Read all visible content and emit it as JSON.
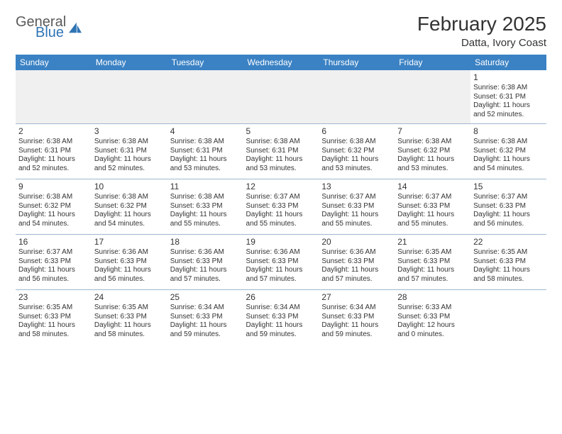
{
  "brand": {
    "line1": "General",
    "line2": "Blue",
    "color_general": "#5a5a5a",
    "color_blue": "#2f74b5",
    "sail_color": "#2f74b5"
  },
  "header": {
    "month_title": "February 2025",
    "location": "Datta, Ivory Coast"
  },
  "style": {
    "header_bg": "#3b82c4",
    "header_text": "#ffffff",
    "cell_border": "#9fb8cf",
    "empty_bg": "#f0f0f0",
    "body_text": "#333333",
    "font_day": 12,
    "font_cell": 10,
    "font_title": 28,
    "font_location": 15
  },
  "weekdays": [
    "Sunday",
    "Monday",
    "Tuesday",
    "Wednesday",
    "Thursday",
    "Friday",
    "Saturday"
  ],
  "weeks": [
    [
      null,
      null,
      null,
      null,
      null,
      null,
      {
        "day": "1",
        "sunrise": "6:38 AM",
        "sunset": "6:31 PM",
        "daylight": "11 hours and 52 minutes."
      }
    ],
    [
      {
        "day": "2",
        "sunrise": "6:38 AM",
        "sunset": "6:31 PM",
        "daylight": "11 hours and 52 minutes."
      },
      {
        "day": "3",
        "sunrise": "6:38 AM",
        "sunset": "6:31 PM",
        "daylight": "11 hours and 52 minutes."
      },
      {
        "day": "4",
        "sunrise": "6:38 AM",
        "sunset": "6:31 PM",
        "daylight": "11 hours and 53 minutes."
      },
      {
        "day": "5",
        "sunrise": "6:38 AM",
        "sunset": "6:31 PM",
        "daylight": "11 hours and 53 minutes."
      },
      {
        "day": "6",
        "sunrise": "6:38 AM",
        "sunset": "6:32 PM",
        "daylight": "11 hours and 53 minutes."
      },
      {
        "day": "7",
        "sunrise": "6:38 AM",
        "sunset": "6:32 PM",
        "daylight": "11 hours and 53 minutes."
      },
      {
        "day": "8",
        "sunrise": "6:38 AM",
        "sunset": "6:32 PM",
        "daylight": "11 hours and 54 minutes."
      }
    ],
    [
      {
        "day": "9",
        "sunrise": "6:38 AM",
        "sunset": "6:32 PM",
        "daylight": "11 hours and 54 minutes."
      },
      {
        "day": "10",
        "sunrise": "6:38 AM",
        "sunset": "6:32 PM",
        "daylight": "11 hours and 54 minutes."
      },
      {
        "day": "11",
        "sunrise": "6:38 AM",
        "sunset": "6:33 PM",
        "daylight": "11 hours and 55 minutes."
      },
      {
        "day": "12",
        "sunrise": "6:37 AM",
        "sunset": "6:33 PM",
        "daylight": "11 hours and 55 minutes."
      },
      {
        "day": "13",
        "sunrise": "6:37 AM",
        "sunset": "6:33 PM",
        "daylight": "11 hours and 55 minutes."
      },
      {
        "day": "14",
        "sunrise": "6:37 AM",
        "sunset": "6:33 PM",
        "daylight": "11 hours and 55 minutes."
      },
      {
        "day": "15",
        "sunrise": "6:37 AM",
        "sunset": "6:33 PM",
        "daylight": "11 hours and 56 minutes."
      }
    ],
    [
      {
        "day": "16",
        "sunrise": "6:37 AM",
        "sunset": "6:33 PM",
        "daylight": "11 hours and 56 minutes."
      },
      {
        "day": "17",
        "sunrise": "6:36 AM",
        "sunset": "6:33 PM",
        "daylight": "11 hours and 56 minutes."
      },
      {
        "day": "18",
        "sunrise": "6:36 AM",
        "sunset": "6:33 PM",
        "daylight": "11 hours and 57 minutes."
      },
      {
        "day": "19",
        "sunrise": "6:36 AM",
        "sunset": "6:33 PM",
        "daylight": "11 hours and 57 minutes."
      },
      {
        "day": "20",
        "sunrise": "6:36 AM",
        "sunset": "6:33 PM",
        "daylight": "11 hours and 57 minutes."
      },
      {
        "day": "21",
        "sunrise": "6:35 AM",
        "sunset": "6:33 PM",
        "daylight": "11 hours and 57 minutes."
      },
      {
        "day": "22",
        "sunrise": "6:35 AM",
        "sunset": "6:33 PM",
        "daylight": "11 hours and 58 minutes."
      }
    ],
    [
      {
        "day": "23",
        "sunrise": "6:35 AM",
        "sunset": "6:33 PM",
        "daylight": "11 hours and 58 minutes."
      },
      {
        "day": "24",
        "sunrise": "6:35 AM",
        "sunset": "6:33 PM",
        "daylight": "11 hours and 58 minutes."
      },
      {
        "day": "25",
        "sunrise": "6:34 AM",
        "sunset": "6:33 PM",
        "daylight": "11 hours and 59 minutes."
      },
      {
        "day": "26",
        "sunrise": "6:34 AM",
        "sunset": "6:33 PM",
        "daylight": "11 hours and 59 minutes."
      },
      {
        "day": "27",
        "sunrise": "6:34 AM",
        "sunset": "6:33 PM",
        "daylight": "11 hours and 59 minutes."
      },
      {
        "day": "28",
        "sunrise": "6:33 AM",
        "sunset": "6:33 PM",
        "daylight": "12 hours and 0 minutes."
      },
      null
    ]
  ],
  "labels": {
    "sunrise": "Sunrise:",
    "sunset": "Sunset:",
    "daylight": "Daylight:"
  }
}
